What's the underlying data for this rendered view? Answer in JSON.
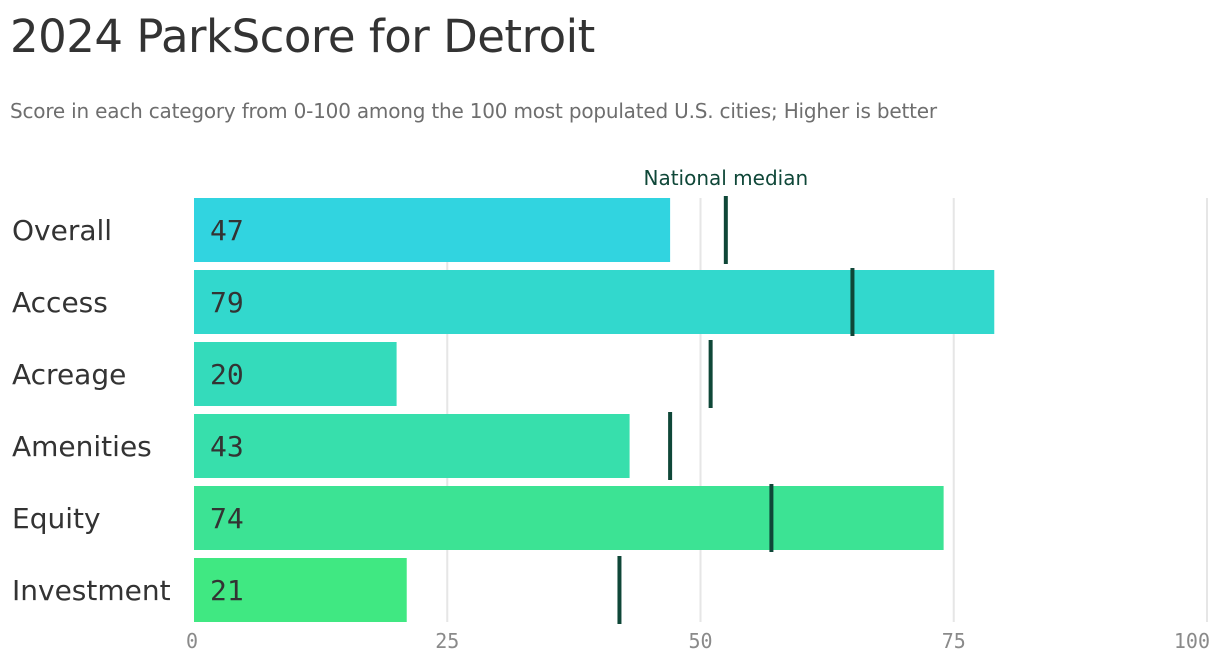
{
  "chart_data": {
    "type": "bar",
    "orientation": "horizontal",
    "title": "2024 ParkScore for Detroit",
    "subtitle": "Score in each category from 0-100 among the 100 most populated U.S. cities; Higher is better",
    "categories": [
      "Overall",
      "Access",
      "Acreage",
      "Amenities",
      "Equity",
      "Investment"
    ],
    "series": [
      {
        "values": [
          47,
          79,
          20,
          43,
          74,
          21
        ]
      }
    ],
    "reference_marker": {
      "label": "National median",
      "values": [
        52.5,
        65,
        51,
        47,
        57,
        42
      ]
    },
    "xlim": [
      0,
      100
    ],
    "xticks": [
      0,
      25,
      50,
      75,
      100
    ],
    "grid": true,
    "legend": "none",
    "colors": {
      "bars": [
        "#31d4e0",
        "#32d8cd",
        "#34dbbb",
        "#37dfac",
        "#3ce394",
        "#40e882"
      ],
      "marker": "#0f4738",
      "gridline": "#e6e6e6",
      "text": "#333333",
      "tick_text": "#8a8a8a",
      "subtitle_text": "#6e6e6e"
    }
  }
}
